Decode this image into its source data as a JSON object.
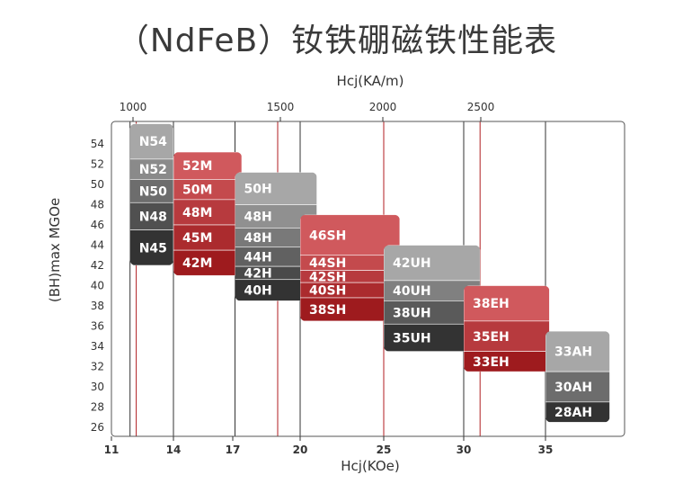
{
  "title": "（NdFeB）钕铁硼磁铁性能表",
  "chart_data": {
    "type": "table",
    "x_bottom_label": "Hcj(KOe)",
    "x_top_label": "Hcj(KA/m)",
    "ylabel": "(BH)max MGOe",
    "x_bottom_ticks": [
      11,
      14,
      17,
      20,
      25,
      30,
      35
    ],
    "x_top_ticks": [
      1000,
      1500,
      2000,
      2500
    ],
    "y_ticks": [
      26,
      28,
      30,
      32,
      34,
      36,
      38,
      40,
      42,
      44,
      46,
      48,
      50,
      52,
      54
    ],
    "xlim": [
      11,
      38
    ],
    "ylim": [
      25.5,
      56
    ],
    "groups": [
      {
        "x_range": [
          11.9,
          14
        ],
        "top_color": "#a7a7a7",
        "bottom_color": "#333333",
        "grades": [
          {
            "label": "N54",
            "y_range": [
              52.5,
              56
            ]
          },
          {
            "label": "N52",
            "y_range": [
              50.5,
              52.5
            ]
          },
          {
            "label": "N50",
            "y_range": [
              48.2,
              50.5
            ]
          },
          {
            "label": "N48",
            "y_range": [
              45.5,
              48.2
            ]
          },
          {
            "label": "N45",
            "y_range": [
              42.0,
              45.5
            ]
          }
        ]
      },
      {
        "x_range": [
          14,
          17.4
        ],
        "top_color": "#d0595d",
        "bottom_color": "#9e1b1e",
        "grades": [
          {
            "label": "52M",
            "y_range": [
              50.5,
              53.2
            ]
          },
          {
            "label": "50M",
            "y_range": [
              48.5,
              50.5
            ]
          },
          {
            "label": "48M",
            "y_range": [
              46.0,
              48.5
            ]
          },
          {
            "label": "45M",
            "y_range": [
              43.5,
              46.0
            ]
          },
          {
            "label": "42M",
            "y_range": [
              41.0,
              43.5
            ]
          }
        ]
      },
      {
        "x_range": [
          17.1,
          21
        ],
        "top_color": "#a7a7a7",
        "bottom_color": "#333333",
        "grades": [
          {
            "label": "50H",
            "y_range": [
              48.0,
              51.2
            ]
          },
          {
            "label": "48H",
            "y_range": [
              45.7,
              48.0
            ]
          },
          {
            "label": "48H",
            "y_range": [
              43.8,
              45.7
            ]
          },
          {
            "label": "44H",
            "y_range": [
              41.9,
              43.8
            ]
          },
          {
            "label": "42H",
            "y_range": [
              40.6,
              41.9
            ]
          },
          {
            "label": "40H",
            "y_range": [
              38.5,
              40.6
            ]
          }
        ]
      },
      {
        "x_range": [
          20,
          26
        ],
        "top_color": "#d0595d",
        "bottom_color": "#9e1b1e",
        "grades": [
          {
            "label": "46SH",
            "y_range": [
              43.0,
              47.0
            ]
          },
          {
            "label": "44SH",
            "y_range": [
              41.5,
              43.0
            ]
          },
          {
            "label": "42SH",
            "y_range": [
              40.3,
              41.5
            ]
          },
          {
            "label": "40SH",
            "y_range": [
              38.8,
              40.3
            ]
          },
          {
            "label": "38SH",
            "y_range": [
              36.5,
              38.8
            ]
          }
        ]
      },
      {
        "x_range": [
          25,
          31
        ],
        "top_color": "#a7a7a7",
        "bottom_color": "#333333",
        "grades": [
          {
            "label": "42UH",
            "y_range": [
              40.5,
              44.0
            ]
          },
          {
            "label": "40UH",
            "y_range": [
              38.5,
              40.5
            ]
          },
          {
            "label": "38UH",
            "y_range": [
              36.2,
              38.5
            ]
          },
          {
            "label": "35UH",
            "y_range": [
              33.5,
              36.2
            ]
          }
        ]
      },
      {
        "x_range": [
          30,
          35.2
        ],
        "top_color": "#d0595d",
        "bottom_color": "#9e1b1e",
        "grades": [
          {
            "label": "38EH",
            "y_range": [
              36.5,
              40.0
            ]
          },
          {
            "label": "35EH",
            "y_range": [
              33.5,
              36.5
            ]
          },
          {
            "label": "33EH",
            "y_range": [
              31.5,
              33.5
            ]
          }
        ]
      },
      {
        "x_range": [
          35,
          38.3
        ],
        "top_color": "#a7a7a7",
        "bottom_color": "#333333",
        "grades": [
          {
            "label": "33AH",
            "y_range": [
              31.5,
              35.5
            ]
          },
          {
            "label": "30AH",
            "y_range": [
              28.5,
              31.5
            ]
          },
          {
            "label": "28AH",
            "y_range": [
              26.5,
              28.5
            ]
          }
        ]
      }
    ],
    "grid_x_dark": [
      11.9,
      14,
      17.1,
      20,
      25,
      30,
      35
    ],
    "grid_x_red": [
      12.2,
      19,
      25,
      31
    ]
  }
}
